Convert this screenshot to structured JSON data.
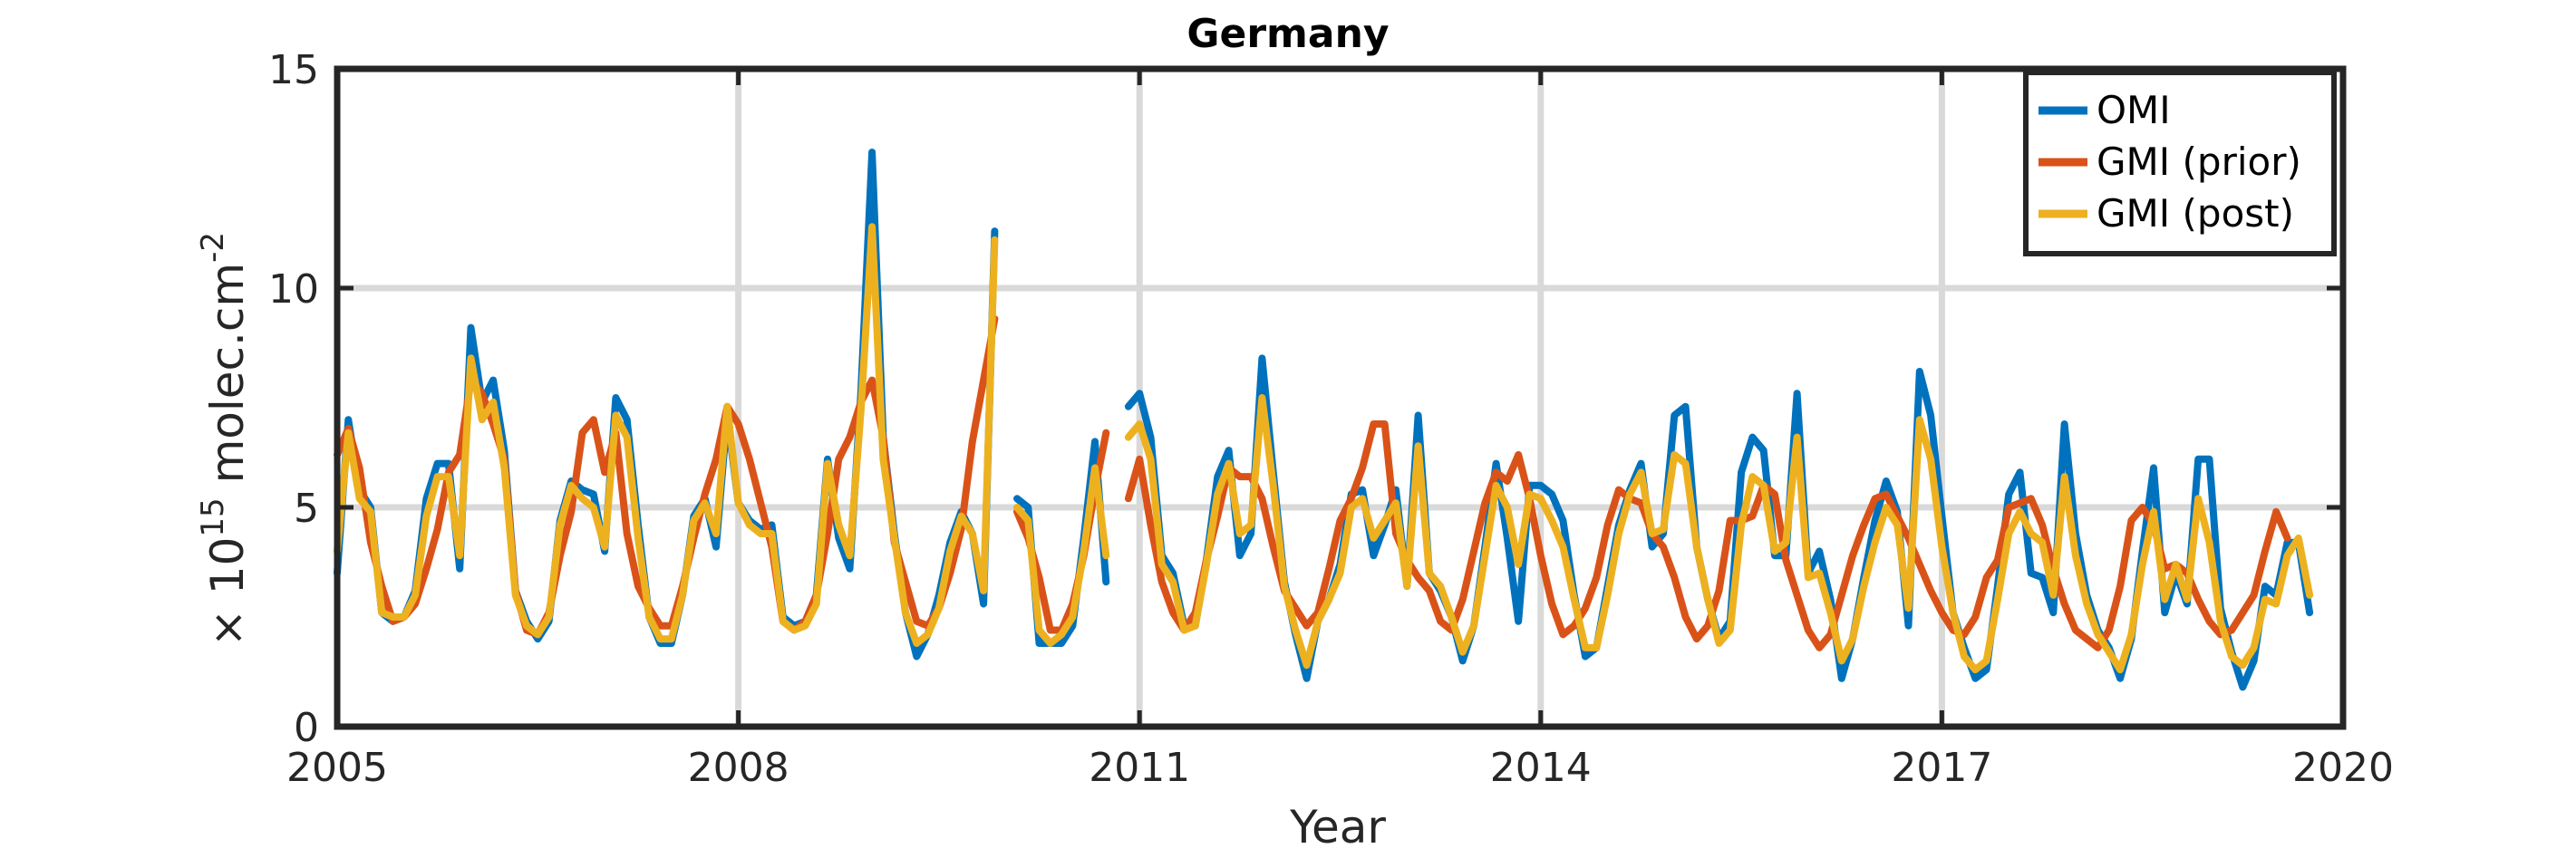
{
  "chart_data": {
    "type": "line",
    "title": "Germany",
    "xlabel": "Year",
    "ylabel_prefix": "× 10",
    "ylabel_exponent": "15",
    "ylabel_unit": "molec.cm",
    "ylabel_unit_exponent": "-2",
    "xlim": [
      2005,
      2020
    ],
    "ylim": [
      0,
      15
    ],
    "xticks": [
      2005,
      2008,
      2011,
      2014,
      2017,
      2020
    ],
    "xtick_labels": [
      "2005",
      "2008",
      "2011",
      "2014",
      "2017",
      "2020"
    ],
    "yticks": [
      0,
      5,
      10,
      15
    ],
    "ytick_labels": [
      "0",
      "5",
      "10",
      "15"
    ],
    "grid": true,
    "legend_position": "top-right",
    "series": [
      {
        "name": "OMI",
        "color": "#0072BD",
        "values": [
          3.5,
          7.0,
          5.4,
          5.0,
          2.6,
          2.4,
          2.5,
          3.1,
          5.2,
          6.0,
          6.0,
          3.6,
          9.1,
          7.4,
          7.9,
          6.3,
          3.1,
          2.4,
          2.0,
          2.4,
          4.7,
          5.6,
          5.4,
          5.3,
          4.0,
          7.5,
          7.0,
          4.6,
          2.5,
          1.9,
          1.9,
          3.0,
          4.8,
          5.2,
          4.1,
          7.1,
          5.1,
          4.7,
          4.5,
          4.6,
          2.5,
          2.3,
          2.4,
          3.0,
          6.1,
          4.3,
          3.6,
          7.6,
          13.1,
          6.6,
          4.4,
          2.6,
          1.6,
          2.1,
          3.0,
          4.2,
          4.9,
          4.4,
          2.8,
          11.3,
          null,
          5.2,
          5.0,
          1.9,
          1.9,
          1.9,
          2.3,
          4.3,
          6.5,
          3.3,
          null,
          7.3,
          7.6,
          6.6,
          3.9,
          3.5,
          2.3,
          2.3,
          3.8,
          5.7,
          6.3,
          3.9,
          4.4,
          8.4,
          5.8,
          3.3,
          2.1,
          1.1,
          2.4,
          2.9,
          3.7,
          5.3,
          5.4,
          3.9,
          4.6,
          5.4,
          3.2,
          7.1,
          3.5,
          3.1,
          2.5,
          1.5,
          2.3,
          4.1,
          6.0,
          4.3,
          2.4,
          5.5,
          5.5,
          5.3,
          4.7,
          3.0,
          1.6,
          1.8,
          3.2,
          4.6,
          5.4,
          6.0,
          4.1,
          4.4,
          7.1,
          7.3,
          4.1,
          2.9,
          2.0,
          2.4,
          5.8,
          6.6,
          6.3,
          3.9,
          3.9,
          7.6,
          3.5,
          4.0,
          2.9,
          1.1,
          2.0,
          3.4,
          4.7,
          5.6,
          4.9,
          2.3,
          8.1,
          7.1,
          4.8,
          2.6,
          1.8,
          1.1,
          1.3,
          3.2,
          5.3,
          5.8,
          3.5,
          3.4,
          2.6,
          6.9,
          4.4,
          3.0,
          2.2,
          1.8,
          1.1,
          2.0,
          4.0,
          5.9,
          2.6,
          3.5,
          2.8,
          6.1,
          6.1,
          2.7,
          1.7,
          0.9,
          1.5,
          3.2,
          3.0,
          4.2,
          4.2,
          2.6
        ]
      },
      {
        "name": "GMI (prior)",
        "color": "#D95319",
        "values": [
          6.2,
          6.8,
          5.9,
          4.2,
          3.2,
          2.4,
          2.5,
          2.8,
          3.6,
          4.5,
          5.8,
          6.2,
          7.9,
          7.6,
          6.9,
          6.1,
          3.1,
          2.2,
          2.1,
          2.6,
          3.9,
          4.9,
          6.7,
          7.0,
          5.8,
          6.7,
          4.4,
          3.2,
          2.7,
          2.3,
          2.3,
          3.2,
          4.3,
          5.3,
          6.1,
          7.3,
          6.9,
          6.1,
          5.1,
          4.1,
          2.4,
          2.2,
          2.4,
          3.0,
          4.4,
          6.1,
          6.6,
          7.4,
          7.9,
          6.6,
          4.2,
          3.3,
          2.4,
          2.3,
          2.7,
          3.5,
          4.5,
          6.5,
          7.9,
          9.3,
          null,
          4.9,
          4.3,
          3.4,
          2.2,
          2.2,
          2.8,
          3.9,
          5.4,
          6.7,
          null,
          5.2,
          6.1,
          4.6,
          3.3,
          2.6,
          2.2,
          2.6,
          3.8,
          4.8,
          5.9,
          5.7,
          5.7,
          5.2,
          4.1,
          3.1,
          2.7,
          2.3,
          2.6,
          3.6,
          4.7,
          5.2,
          5.9,
          6.9,
          6.9,
          4.4,
          3.8,
          3.4,
          3.1,
          2.4,
          2.2,
          2.9,
          4.0,
          5.1,
          5.8,
          5.6,
          6.2,
          5.2,
          3.9,
          2.8,
          2.1,
          2.3,
          2.7,
          3.4,
          4.6,
          5.4,
          5.2,
          5.1,
          4.4,
          4.1,
          3.4,
          2.5,
          2.0,
          2.3,
          3.1,
          4.7,
          4.7,
          4.8,
          5.5,
          5.3,
          3.8,
          3.0,
          2.2,
          1.8,
          2.1,
          3.0,
          3.9,
          4.6,
          5.2,
          5.3,
          4.8,
          4.3,
          3.7,
          3.1,
          2.6,
          2.2,
          2.1,
          2.5,
          3.4,
          3.8,
          5.0,
          5.1,
          5.2,
          4.6,
          3.6,
          2.8,
          2.2,
          2.0,
          1.8,
          2.2,
          3.2,
          4.7,
          5.0,
          4.6,
          3.6,
          3.7,
          3.5,
          2.9,
          2.4,
          2.1,
          2.2,
          2.6,
          3.0,
          4.0,
          4.9,
          4.3
        ]
      },
      {
        "name": "GMI (post)",
        "color": "#EDB120",
        "values": [
          4.0,
          6.7,
          5.2,
          4.9,
          2.6,
          2.5,
          2.5,
          3.0,
          4.8,
          5.7,
          5.7,
          3.9,
          8.4,
          7.0,
          7.4,
          5.9,
          3.0,
          2.3,
          2.1,
          2.5,
          4.6,
          5.5,
          5.2,
          5.0,
          4.1,
          7.1,
          6.6,
          4.3,
          2.5,
          2.0,
          2.0,
          3.0,
          4.7,
          5.1,
          4.4,
          7.3,
          5.1,
          4.6,
          4.4,
          4.4,
          2.4,
          2.2,
          2.3,
          2.8,
          6.0,
          4.6,
          3.9,
          7.2,
          11.4,
          6.1,
          4.3,
          2.6,
          1.9,
          2.1,
          2.7,
          4.0,
          4.8,
          4.4,
          3.1,
          11.1,
          null,
          5.0,
          4.7,
          2.2,
          1.9,
          2.1,
          2.5,
          4.0,
          5.9,
          3.9,
          null,
          6.6,
          6.9,
          6.1,
          3.7,
          3.3,
          2.2,
          2.3,
          3.7,
          5.3,
          6.0,
          4.4,
          4.6,
          7.5,
          5.5,
          3.2,
          2.2,
          1.4,
          2.4,
          2.9,
          3.5,
          5.0,
          5.2,
          4.3,
          4.7,
          5.1,
          3.2,
          6.4,
          3.5,
          3.2,
          2.5,
          1.7,
          2.3,
          3.9,
          5.5,
          5.0,
          3.7,
          5.3,
          5.2,
          4.7,
          4.1,
          2.9,
          1.8,
          1.8,
          3.0,
          4.4,
          5.3,
          5.8,
          4.4,
          4.5,
          6.2,
          6.0,
          4.1,
          2.9,
          1.9,
          2.2,
          4.6,
          5.7,
          5.5,
          4.0,
          4.2,
          6.6,
          3.4,
          3.5,
          2.6,
          1.5,
          2.0,
          3.2,
          4.2,
          5.0,
          4.6,
          2.7,
          7.0,
          6.1,
          4.1,
          2.6,
          1.6,
          1.3,
          1.5,
          2.9,
          4.4,
          4.9,
          4.4,
          4.2,
          3.0,
          5.7,
          3.9,
          2.8,
          2.1,
          1.7,
          1.3,
          2.1,
          3.7,
          4.9,
          2.9,
          3.7,
          2.9,
          5.2,
          4.2,
          2.4,
          1.6,
          1.4,
          1.8,
          2.9,
          2.8,
          3.9,
          4.3,
          3.0
        ]
      }
    ]
  }
}
